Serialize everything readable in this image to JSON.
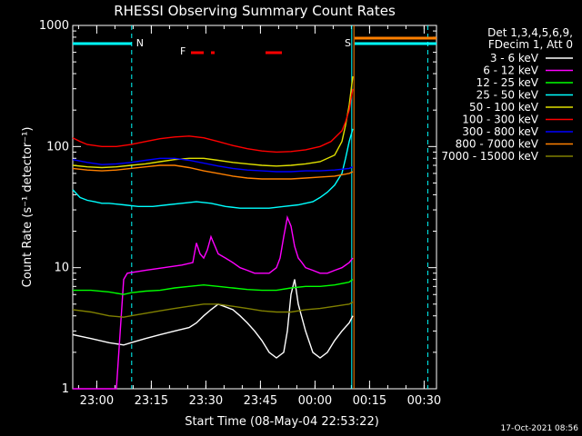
{
  "chart_data": {
    "type": "line",
    "title": "RHESSI Observing Summary Count Rates",
    "xlabel": "Start Time (08-May-04 22:53:22)",
    "ylabel": "Count Rate (s⁻¹ detector⁻¹)",
    "x_unit": "minutes since 22:53:22",
    "xlim": [
      0,
      100
    ],
    "ylim": [
      1,
      1000
    ],
    "yscale": "log",
    "xticks": [
      {
        "x": 6.6,
        "label": "23:00"
      },
      {
        "x": 21.6,
        "label": "23:15"
      },
      {
        "x": 36.6,
        "label": "23:30"
      },
      {
        "x": 51.6,
        "label": "23:45"
      },
      {
        "x": 66.6,
        "label": "00:00"
      },
      {
        "x": 81.6,
        "label": "00:15"
      },
      {
        "x": 96.6,
        "label": "00:30"
      }
    ],
    "yticks": [
      {
        "y": 1,
        "label": "1"
      },
      {
        "y": 10,
        "label": "10"
      },
      {
        "y": 100,
        "label": "100"
      },
      {
        "y": 1000,
        "label": "1000"
      }
    ],
    "legend": {
      "position": "top-right",
      "header": [
        "Det 1,3,4,5,6,9,",
        "FDecim 1, Att 0"
      ]
    },
    "series": [
      {
        "name": "3 - 6 keV",
        "color": "#ffffff",
        "x": [
          0,
          5,
          10,
          14,
          16,
          20,
          24,
          28,
          32,
          34,
          36,
          38,
          40,
          44,
          46,
          48,
          50,
          52,
          54,
          56,
          58,
          59,
          60,
          61,
          62,
          64,
          66,
          68,
          70,
          72,
          74,
          76,
          77
        ],
        "y": [
          2.8,
          2.6,
          2.4,
          2.3,
          2.4,
          2.6,
          2.8,
          3.0,
          3.2,
          3.5,
          4.0,
          4.5,
          5.0,
          4.5,
          4.0,
          3.5,
          3.0,
          2.5,
          2.0,
          1.8,
          2.0,
          3.0,
          6.0,
          8.0,
          5.0,
          3.0,
          2.0,
          1.8,
          2.0,
          2.5,
          3.0,
          3.5,
          4.0
        ]
      },
      {
        "name": "6 - 12 keV",
        "color": "#ff00ff",
        "x": [
          0,
          10,
          12,
          14,
          15,
          20,
          25,
          30,
          33,
          34,
          35,
          36,
          37,
          38,
          40,
          42,
          44,
          46,
          48,
          50,
          52,
          54,
          56,
          57,
          58,
          59,
          60,
          61,
          62,
          63,
          64,
          66,
          68,
          70,
          72,
          74,
          76,
          77
        ],
        "y": [
          1.0,
          1.0,
          1.0,
          8.0,
          9.0,
          9.5,
          10,
          10.5,
          11,
          16,
          13,
          12,
          14,
          18,
          13,
          12,
          11,
          10,
          9.5,
          9.0,
          9.0,
          9.0,
          10,
          12,
          18,
          26,
          22,
          15,
          12,
          11,
          10,
          9.5,
          9.0,
          9.0,
          9.5,
          10,
          11,
          12
        ]
      },
      {
        "name": "12 - 25 keV",
        "color": "#00ff00",
        "x": [
          0,
          5,
          10,
          14,
          16,
          20,
          24,
          28,
          32,
          36,
          40,
          44,
          48,
          52,
          56,
          60,
          64,
          68,
          72,
          76,
          77
        ],
        "y": [
          6.5,
          6.5,
          6.3,
          6.0,
          6.2,
          6.4,
          6.5,
          6.8,
          7.0,
          7.2,
          7.0,
          6.8,
          6.6,
          6.5,
          6.5,
          6.8,
          7.0,
          7.0,
          7.2,
          7.6,
          8.0
        ]
      },
      {
        "name": "25 - 50 keV",
        "color": "#00ffff",
        "x": [
          0,
          2,
          4,
          6,
          8,
          10,
          14,
          18,
          22,
          26,
          30,
          34,
          38,
          42,
          46,
          50,
          54,
          58,
          62,
          66,
          68,
          70,
          72,
          74,
          75,
          76,
          77
        ],
        "y": [
          44,
          38,
          36,
          35,
          34,
          34,
          33,
          32,
          32,
          33,
          34,
          35,
          34,
          32,
          31,
          31,
          31,
          32,
          33,
          35,
          38,
          42,
          48,
          60,
          80,
          110,
          140
        ]
      },
      {
        "name": "50 - 100 keV",
        "color": "#e0e000",
        "x": [
          0,
          4,
          8,
          12,
          16,
          20,
          24,
          28,
          32,
          36,
          40,
          44,
          48,
          52,
          56,
          60,
          64,
          68,
          72,
          74,
          75,
          76,
          77
        ],
        "y": [
          70,
          68,
          67,
          68,
          70,
          72,
          75,
          78,
          80,
          80,
          77,
          74,
          72,
          70,
          69,
          70,
          72,
          75,
          85,
          110,
          150,
          220,
          380
        ]
      },
      {
        "name": "100 - 300 keV",
        "color": "#ff0000",
        "x": [
          0,
          2,
          4,
          8,
          12,
          16,
          20,
          24,
          28,
          32,
          36,
          40,
          44,
          48,
          52,
          56,
          60,
          64,
          68,
          71,
          74,
          75,
          76,
          77
        ],
        "y": [
          118,
          110,
          104,
          100,
          100,
          104,
          110,
          116,
          120,
          122,
          118,
          110,
          102,
          96,
          92,
          90,
          91,
          94,
          100,
          110,
          135,
          160,
          200,
          300
        ]
      },
      {
        "name": "300 - 800 keV",
        "color": "#0000ff",
        "x": [
          0,
          4,
          8,
          12,
          16,
          20,
          24,
          28,
          32,
          36,
          40,
          44,
          48,
          52,
          56,
          60,
          64,
          68,
          72,
          76,
          77
        ],
        "y": [
          78,
          74,
          71,
          72,
          74,
          77,
          80,
          80,
          77,
          73,
          69,
          66,
          64,
          63,
          62,
          62,
          63,
          63,
          64,
          66,
          68
        ]
      },
      {
        "name": "800 - 7000 keV",
        "color": "#ff8000",
        "x": [
          0,
          4,
          8,
          12,
          16,
          20,
          24,
          28,
          32,
          36,
          40,
          44,
          48,
          52,
          56,
          60,
          64,
          68,
          72,
          76,
          77
        ],
        "y": [
          66,
          64,
          63,
          64,
          66,
          68,
          70,
          70,
          67,
          63,
          60,
          57,
          55,
          54,
          54,
          54,
          55,
          56,
          57,
          60,
          62
        ]
      },
      {
        "name": "7000 - 15000 keV",
        "color": "#808000",
        "x": [
          0,
          5,
          10,
          14,
          16,
          20,
          24,
          28,
          32,
          36,
          40,
          44,
          48,
          52,
          56,
          60,
          64,
          68,
          72,
          76,
          77
        ],
        "y": [
          4.5,
          4.3,
          4.0,
          3.9,
          4.0,
          4.2,
          4.4,
          4.6,
          4.8,
          5.0,
          5.0,
          4.8,
          4.6,
          4.4,
          4.3,
          4.3,
          4.5,
          4.6,
          4.8,
          5.0,
          5.2
        ]
      }
    ],
    "annotations": [
      {
        "label": "N",
        "color": "#00ffff",
        "x": 16.2
      },
      {
        "label": "S",
        "color": "#ff8000",
        "x": 77.0
      }
    ],
    "flag_lines": [
      {
        "label": "F",
        "color": "#ff0000",
        "segments": [
          [
            32.5,
            36.0
          ],
          [
            38.0,
            39.0
          ],
          [
            53.0,
            57.5
          ]
        ]
      }
    ],
    "cyan_bars": [
      [
        0,
        16.2
      ],
      [
        77.5,
        100
      ]
    ],
    "orange_bar": [
      77.5,
      100
    ],
    "vlines": [
      {
        "x": 16.2,
        "color": "#00ffff",
        "dashed": true
      },
      {
        "x": 76.7,
        "color": "#00ffff",
        "dashed": false
      },
      {
        "x": 77.3,
        "color": "#ff8000",
        "dashed": false
      },
      {
        "x": 97.6,
        "color": "#00ffff",
        "dashed": true
      }
    ],
    "grid": false,
    "timestamp": "17-Oct-2021 08:56"
  }
}
